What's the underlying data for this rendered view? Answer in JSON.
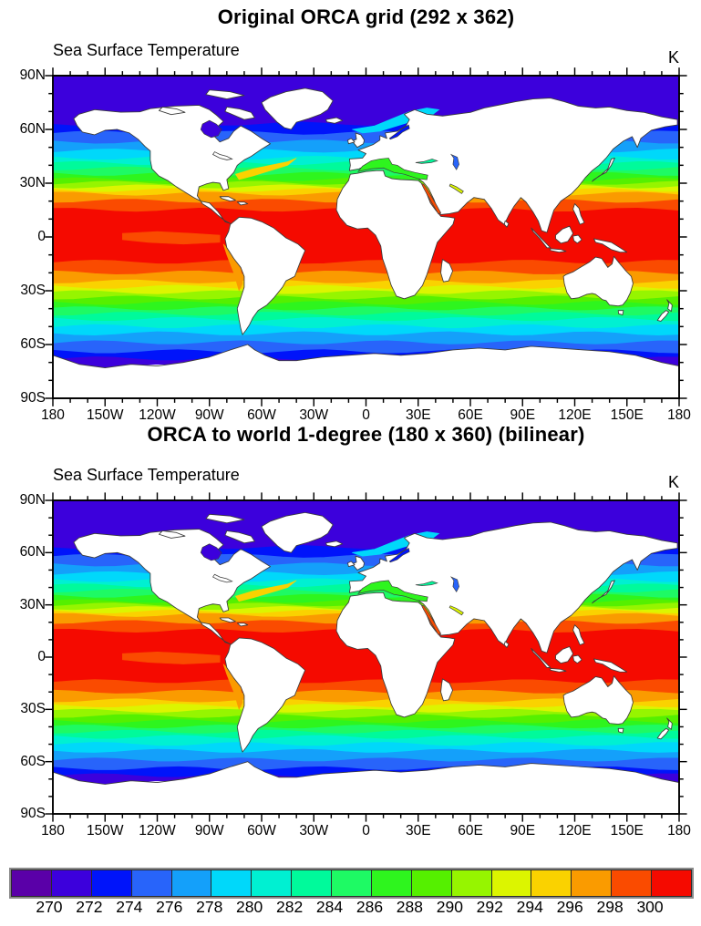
{
  "figure1": {
    "title": "Original ORCA grid (292 x 362)",
    "subtitle": "Sea Surface Temperature",
    "units": "K"
  },
  "figure2": {
    "title": "ORCA to world 1-degree (180 x 360) (bilinear)",
    "subtitle": "Sea Surface Temperature",
    "units": "K"
  },
  "axis": {
    "lat_labels": [
      "90N",
      "60N",
      "30N",
      "0",
      "30S",
      "60S",
      "90S"
    ],
    "lon_labels": [
      "180",
      "150W",
      "120W",
      "90W",
      "60W",
      "30W",
      "0",
      "30E",
      "60E",
      "90E",
      "120E",
      "150E",
      "180"
    ]
  },
  "colorbar": {
    "tick_labels": [
      "270",
      "272",
      "274",
      "276",
      "278",
      "280",
      "282",
      "284",
      "286",
      "288",
      "290",
      "292",
      "294",
      "296",
      "298",
      "300"
    ],
    "colors": [
      "#5a00a8",
      "#3c00dc",
      "#0014fa",
      "#2864fa",
      "#14a0fa",
      "#00d8fa",
      "#00f0d2",
      "#00fa9b",
      "#1efa64",
      "#2ef51e",
      "#55f000",
      "#96f500",
      "#dcf500",
      "#fad200",
      "#fa9b00",
      "#fa4b00",
      "#f50a00"
    ],
    "border_color": "#8a8a8a",
    "cell_edge_color": "#2a2a2a"
  },
  "chart_data": {
    "type": "heatmap",
    "variable": "Sea Surface Temperature",
    "units": "K",
    "panels": [
      {
        "title": "Original ORCA grid (292 x 362)",
        "grid": "292 x 362"
      },
      {
        "title": "ORCA to world 1-degree (180 x 360) (bilinear)",
        "grid": "180 x 360",
        "method": "bilinear"
      }
    ],
    "x_tick_labels": [
      "180",
      "150W",
      "120W",
      "90W",
      "60W",
      "30W",
      "0",
      "30E",
      "60E",
      "90E",
      "120E",
      "150E",
      "180"
    ],
    "y_tick_labels": [
      "90N",
      "60N",
      "30N",
      "0",
      "30S",
      "60S",
      "90S"
    ],
    "lon_range": [
      -180,
      180
    ],
    "lat_range": [
      -90,
      90
    ],
    "contour_levels": [
      270,
      272,
      274,
      276,
      278,
      280,
      282,
      284,
      286,
      288,
      290,
      292,
      294,
      296,
      298,
      300
    ],
    "palette": [
      "#5a00a8",
      "#3c00dc",
      "#0014fa",
      "#2864fa",
      "#14a0fa",
      "#00d8fa",
      "#00f0d2",
      "#00fa9b",
      "#1efa64",
      "#2ef51e",
      "#55f000",
      "#96f500",
      "#dcf500",
      "#fad200",
      "#fa9b00",
      "#fa4b00",
      "#f50a00"
    ],
    "land_color": "#ffffff",
    "coast_color": "#3c3c3c",
    "zonal_bands": [
      {
        "lat_from": 90,
        "lat_to": 63,
        "level_index": 1
      },
      {
        "lat_from": 63,
        "lat_to": 58,
        "level_index": 2
      },
      {
        "lat_from": 58,
        "lat_to": 53,
        "level_index": 3
      },
      {
        "lat_from": 53,
        "lat_to": 48,
        "level_index": 4
      },
      {
        "lat_from": 48,
        "lat_to": 44,
        "level_index": 5
      },
      {
        "lat_from": 44,
        "lat_to": 41,
        "level_index": 6
      },
      {
        "lat_from": 41,
        "lat_to": 38,
        "level_index": 7
      },
      {
        "lat_from": 38,
        "lat_to": 35,
        "level_index": 8
      },
      {
        "lat_from": 35,
        "lat_to": 32,
        "level_index": 9
      },
      {
        "lat_from": 32,
        "lat_to": 30,
        "level_index": 10
      },
      {
        "lat_from": 30,
        "lat_to": 28,
        "level_index": 11
      },
      {
        "lat_from": 28,
        "lat_to": 26,
        "level_index": 12
      },
      {
        "lat_from": 26,
        "lat_to": 24,
        "level_index": 13
      },
      {
        "lat_from": 24,
        "lat_to": 20,
        "level_index": 14
      },
      {
        "lat_from": 20,
        "lat_to": 15,
        "level_index": 15
      },
      {
        "lat_from": 15,
        "lat_to": -14,
        "level_index": 16
      },
      {
        "lat_from": -14,
        "lat_to": -20,
        "level_index": 15
      },
      {
        "lat_from": -20,
        "lat_to": -25,
        "level_index": 14
      },
      {
        "lat_from": -25,
        "lat_to": -28,
        "level_index": 13
      },
      {
        "lat_from": -28,
        "lat_to": -31,
        "level_index": 12
      },
      {
        "lat_from": -31,
        "lat_to": -34,
        "level_index": 11
      },
      {
        "lat_from": -34,
        "lat_to": -37,
        "level_index": 10
      },
      {
        "lat_from": -37,
        "lat_to": -40,
        "level_index": 9
      },
      {
        "lat_from": -40,
        "lat_to": -43,
        "level_index": 8
      },
      {
        "lat_from": -43,
        "lat_to": -46,
        "level_index": 7
      },
      {
        "lat_from": -46,
        "lat_to": -50,
        "level_index": 6
      },
      {
        "lat_from": -50,
        "lat_to": -54,
        "level_index": 5
      },
      {
        "lat_from": -54,
        "lat_to": -59,
        "level_index": 4
      },
      {
        "lat_from": -59,
        "lat_to": -64,
        "level_index": 3
      },
      {
        "lat_from": -64,
        "lat_to": -68,
        "level_index": 2
      },
      {
        "lat_from": -68,
        "lat_to": -72,
        "level_index": 1
      }
    ],
    "ocean_features": [
      {
        "name": "northeast-atlantic-warm-intrusion",
        "level_index": 5
      },
      {
        "name": "gulf-stream-warm-tongue",
        "level_index": 13
      },
      {
        "name": "equatorial-pacific-cold-tongue",
        "level_index": 15
      },
      {
        "name": "peru-chile-coastal-upwelling",
        "level_index": 14
      }
    ],
    "inland_seas": [
      {
        "name": "hudson-bay",
        "level_index": 1
      },
      {
        "name": "baltic-sea",
        "level_index": 2
      },
      {
        "name": "mediterranean-sea",
        "level_index": 9
      },
      {
        "name": "black-sea",
        "level_index": 7
      },
      {
        "name": "caspian-sea",
        "level_index": 3
      },
      {
        "name": "red-sea",
        "level_index": 15
      },
      {
        "name": "persian-gulf",
        "level_index": 12
      }
    ]
  }
}
